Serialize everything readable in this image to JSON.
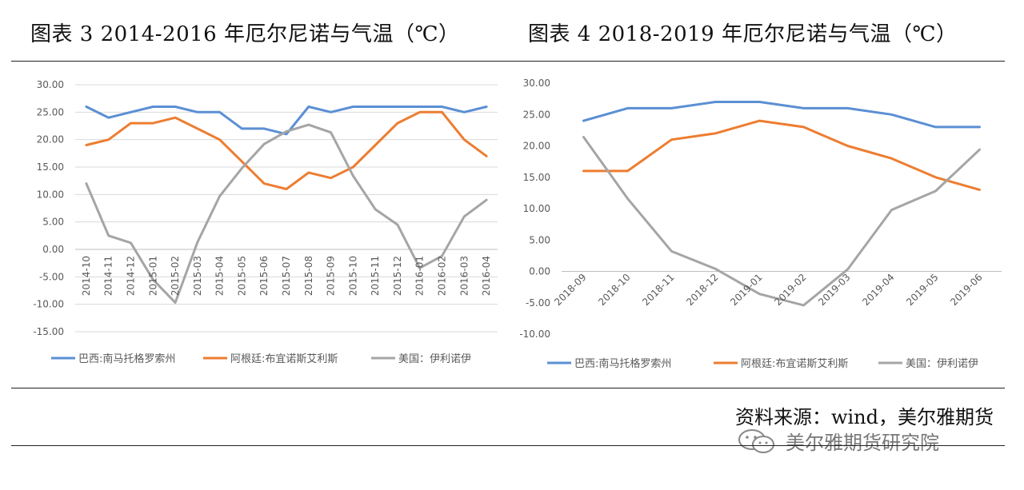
{
  "title_left": "图表 3 2014-2016 年厄尔尼诺与气温（℃）",
  "title_right": "图表 4 2018-2019 年厄尔尼诺与气温（℃）",
  "source": "资料来源：wind，美尔雅期货",
  "watermark": "美尔雅期货研究院",
  "colors": {
    "series1": "#5b8fd4",
    "series2": "#ed7d31",
    "series3": "#a5a5a5",
    "grid": "#d9d9d9"
  },
  "chart_data": [
    {
      "type": "line",
      "title": "",
      "xlabel": "",
      "ylabel": "",
      "ylim": [
        -15,
        30
      ],
      "yticks": [
        "30.00",
        "25.00",
        "20.00",
        "15.00",
        "10.00",
        "5.00",
        "0.00",
        "-5.00",
        "-10.00",
        "-15.00"
      ],
      "grid": true,
      "legend": "bottom",
      "x_label_rotation": "vertical",
      "categories": [
        "2014-10",
        "2014-11",
        "2014-12",
        "2015-01",
        "2015-02",
        "2015-03",
        "2015-04",
        "2015-05",
        "2015-06",
        "2015-07",
        "2015-08",
        "2015-09",
        "2015-10",
        "2015-11",
        "2015-12",
        "2016-01",
        "2016-02",
        "2016-03",
        "2016-04"
      ],
      "series": [
        {
          "name": "巴西:南马托格罗索州",
          "color": "#5b8fd4",
          "values": [
            26,
            24,
            25,
            26,
            26,
            25,
            25,
            22,
            22,
            21,
            26,
            25,
            26,
            26,
            26,
            26,
            26,
            25,
            26
          ]
        },
        {
          "name": "阿根廷:布宜诺斯艾利斯",
          "color": "#ed7d31",
          "values": [
            19,
            20,
            23,
            23,
            24,
            22,
            20,
            16,
            12,
            11,
            14,
            13,
            15,
            19,
            23,
            25,
            25,
            20,
            17
          ]
        },
        {
          "name": "美国：伊利诺伊",
          "color": "#a5a5a5",
          "values": [
            12,
            2.5,
            1.2,
            -5.5,
            -9.7,
            1.3,
            9.7,
            14.8,
            19.2,
            21.5,
            22.7,
            21.3,
            13.4,
            7.3,
            4.5,
            -3.4,
            -1.2,
            6,
            9
          ]
        }
      ]
    },
    {
      "type": "line",
      "title": "",
      "xlabel": "",
      "ylabel": "",
      "ylim": [
        -10,
        30
      ],
      "yticks": [
        "30.00",
        "25.00",
        "20.00",
        "15.00",
        "10.00",
        "5.00",
        "0.00",
        "-5.00",
        "-10.00"
      ],
      "grid": false,
      "legend": "bottom",
      "x_label_rotation": "diagonal",
      "categories": [
        "2018-09",
        "2018-10",
        "2018-11",
        "2018-12",
        "2019-01",
        "2019-02",
        "2019-03",
        "2019-04",
        "2019-05",
        "2019-06"
      ],
      "series": [
        {
          "name": "巴西:南马托格罗索州",
          "color": "#5b8fd4",
          "values": [
            24,
            26,
            26,
            27,
            27,
            26,
            26,
            25,
            23,
            23
          ]
        },
        {
          "name": "阿根廷:布宜诺斯艾利斯",
          "color": "#ed7d31",
          "values": [
            16,
            16,
            21,
            22,
            24,
            23,
            20,
            18,
            15,
            13
          ]
        },
        {
          "name": "美国：伊利诺伊",
          "color": "#a5a5a5",
          "values": [
            21.4,
            11.6,
            3.2,
            0.4,
            -3.6,
            -5.4,
            0.3,
            9.8,
            12.8,
            19.4
          ]
        }
      ]
    }
  ]
}
